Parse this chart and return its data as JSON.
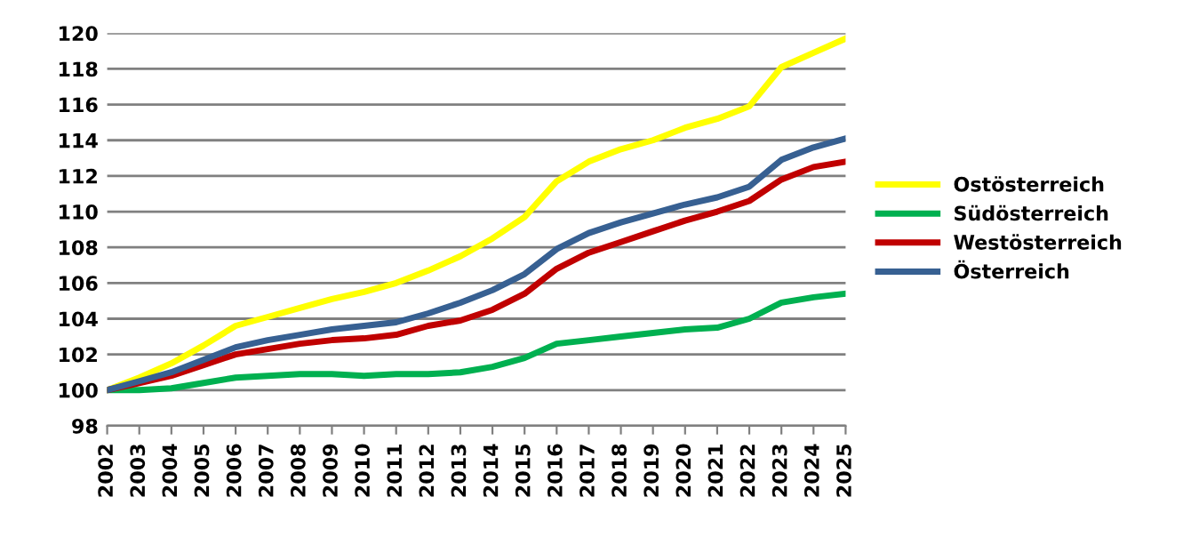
{
  "chart_data": {
    "type": "line",
    "categories": [
      "2002",
      "2003",
      "2004",
      "2005",
      "2006",
      "2007",
      "2008",
      "2009",
      "2010",
      "2011",
      "2012",
      "2013",
      "2014",
      "2015",
      "2016",
      "2017",
      "2018",
      "2019",
      "2020",
      "2021",
      "2022",
      "2023",
      "2024",
      "2025"
    ],
    "series": [
      {
        "name": "Ostösterreich",
        "color": "#ffff00",
        "values": [
          100,
          100.7,
          101.5,
          102.5,
          103.6,
          104.1,
          104.6,
          105.1,
          105.5,
          106.0,
          106.7,
          107.5,
          108.5,
          109.7,
          111.7,
          112.8,
          113.5,
          114.0,
          114.7,
          115.2,
          115.9,
          118.1,
          118.9,
          119.7
        ]
      },
      {
        "name": "Südösterreich",
        "color": "#00b050",
        "values": [
          100,
          100.0,
          100.1,
          100.4,
          100.7,
          100.8,
          100.9,
          100.9,
          100.8,
          100.9,
          100.9,
          101.0,
          101.3,
          101.8,
          102.6,
          102.8,
          103.0,
          103.2,
          103.4,
          103.5,
          104.0,
          104.9,
          105.2,
          105.4
        ]
      },
      {
        "name": "Westösterreich",
        "color": "#c00000",
        "values": [
          100,
          100.4,
          100.8,
          101.4,
          102.0,
          102.3,
          102.6,
          102.8,
          102.9,
          103.1,
          103.6,
          103.9,
          104.5,
          105.4,
          106.8,
          107.7,
          108.3,
          108.9,
          109.5,
          110.0,
          110.6,
          111.8,
          112.5,
          112.8
        ]
      },
      {
        "name": "Österreich",
        "color": "#376092",
        "values": [
          100,
          100.5,
          101.0,
          101.7,
          102.4,
          102.8,
          103.1,
          103.4,
          103.6,
          103.8,
          104.3,
          104.9,
          105.6,
          106.5,
          107.9,
          108.8,
          109.4,
          109.9,
          110.4,
          110.8,
          111.4,
          112.9,
          113.6,
          114.1
        ]
      }
    ],
    "ylim": [
      98,
      120
    ],
    "yticks": [
      98,
      100,
      102,
      104,
      106,
      108,
      110,
      112,
      114,
      116,
      118,
      120
    ],
    "grid": "y",
    "legend": "right",
    "marker": "none",
    "line_style": "solid"
  }
}
